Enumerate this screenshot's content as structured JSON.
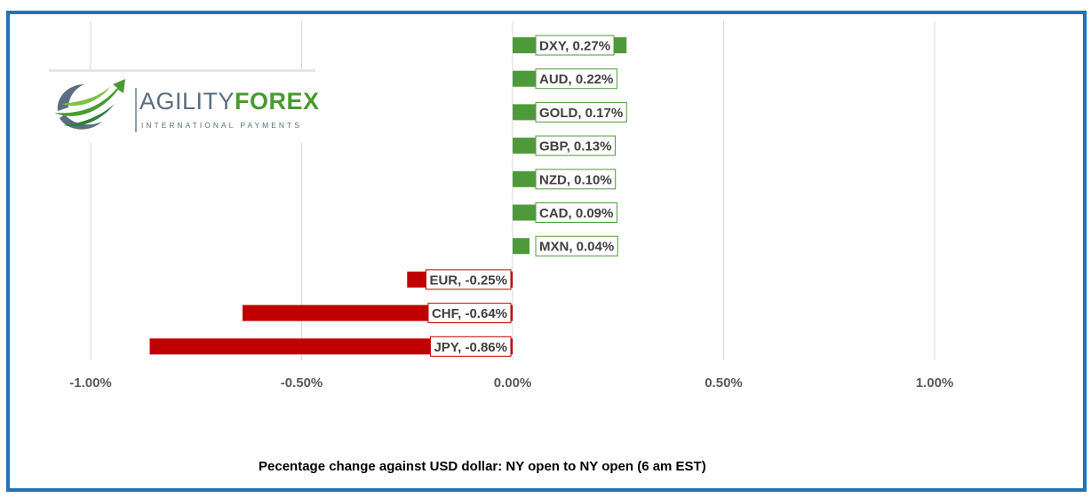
{
  "chart_data": {
    "type": "bar",
    "orientation": "horizontal",
    "categories": [
      "DXY",
      "AUD",
      "GOLD",
      "GBP",
      "NZD",
      "CAD",
      "MXN",
      "EUR",
      "CHF",
      "JPY"
    ],
    "values": [
      0.27,
      0.22,
      0.17,
      0.13,
      0.1,
      0.09,
      0.04,
      -0.25,
      -0.64,
      -0.86
    ],
    "data_labels": [
      "DXY, 0.27%",
      "AUD, 0.22%",
      "GOLD, 0.17%",
      "GBP, 0.13%",
      "NZD, 0.10%",
      "CAD, 0.09%",
      "MXN, 0.04%",
      "EUR, -0.25%",
      "CHF, -0.64%",
      "JPY, -0.86%"
    ],
    "xlabel": "Pecentage change against USD dollar: NY open to NY open (6 am EST)",
    "ylabel": "",
    "xlim": [
      -1.0,
      1.0
    ],
    "x_ticks": [
      -1.0,
      -0.5,
      0.0,
      0.5,
      1.0
    ],
    "x_tick_labels": [
      "-1.00%",
      "-0.50%",
      "0.00%",
      "0.50%",
      "1.00%"
    ],
    "grid": "vertical",
    "legend": "none",
    "colors": {
      "positive": "#4e9a3a",
      "negative": "#c00000",
      "gridline": "#d9d9d9",
      "frame": "#1f74b8"
    }
  },
  "logo": {
    "word_part1": "AGILITY",
    "word_part2": "FOREX",
    "tagline": "INTERNATIONAL PAYMENTS",
    "icon": "globe-swoosh-arrow-icon"
  }
}
